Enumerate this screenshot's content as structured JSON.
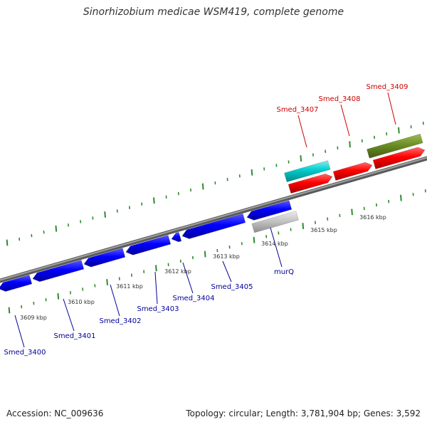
{
  "title": "Sinorhizobium medicae WSM419, complete genome",
  "footer": {
    "accession": "Accession: NC_009636",
    "summary": "Topology: circular; Length: 3,781,904 bp; Genes: 3,592"
  },
  "colors": {
    "background": "#ffffff",
    "backbone": "#7f7f7f",
    "forward_strand_gene": "#ff0000",
    "reverse_strand_gene": "#0000ff",
    "trna_like": "#00cccc",
    "other_feature": "#6b8e23",
    "murQ_feature": "#bfbfbf",
    "ticks": "#2e8b2e",
    "upper_label": "#cc0000",
    "lower_label": "#000099"
  },
  "scale_labels": [
    "3609 kbp",
    "3610 kbp",
    "3611 kbp",
    "3612 kbp",
    "3613 kbp",
    "3614 kbp",
    "3615 kbp",
    "3616 kbp"
  ],
  "upper_gene_labels": [
    "Smed_3407",
    "Smed_3408",
    "Smed_3409"
  ],
  "lower_gene_labels": [
    "Smed_3400",
    "Smed_3401",
    "Smed_3402",
    "Smed_3403",
    "Smed_3404",
    "Smed_3405",
    "murQ"
  ]
}
